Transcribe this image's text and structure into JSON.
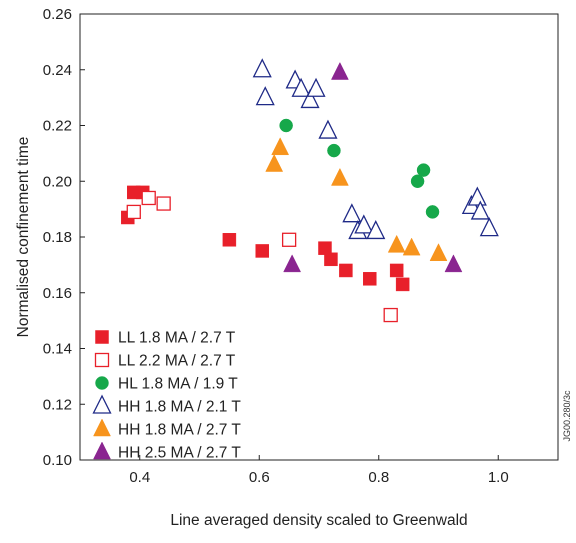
{
  "chart_data": {
    "type": "scatter",
    "title": "",
    "xlabel": "Line averaged density scaled to Greenwald",
    "ylabel": "Normalised confinement time",
    "xlim": [
      0.3,
      1.1
    ],
    "ylim": [
      0.1,
      0.26
    ],
    "xticks": [
      "0.4",
      "0.6",
      "0.8",
      "1.0"
    ],
    "yticks": [
      "0.10",
      "0.12",
      "0.14",
      "0.16",
      "0.18",
      "0.20",
      "0.22",
      "0.24",
      "0.26"
    ],
    "grid": false,
    "legend_position": "bottom-left",
    "figure_id": "JG00.280/3c",
    "series": [
      {
        "name": "LL 1.8 MA / 2.7 T",
        "marker": "square",
        "filled": true,
        "color": "#e8202a",
        "points": [
          [
            0.38,
            0.187
          ],
          [
            0.39,
            0.196
          ],
          [
            0.405,
            0.196
          ],
          [
            0.55,
            0.179
          ],
          [
            0.605,
            0.175
          ],
          [
            0.71,
            0.176
          ],
          [
            0.72,
            0.172
          ],
          [
            0.745,
            0.168
          ],
          [
            0.785,
            0.165
          ],
          [
            0.83,
            0.168
          ],
          [
            0.84,
            0.163
          ]
        ]
      },
      {
        "name": "LL 2.2 MA / 2.7 T",
        "marker": "square",
        "filled": false,
        "color": "#e8202a",
        "points": [
          [
            0.39,
            0.189
          ],
          [
            0.415,
            0.194
          ],
          [
            0.44,
            0.192
          ],
          [
            0.65,
            0.179
          ],
          [
            0.82,
            0.152
          ]
        ]
      },
      {
        "name": "HL 1.8 MA / 1.9 T",
        "marker": "circle",
        "filled": true,
        "color": "#16a84a",
        "points": [
          [
            0.645,
            0.22
          ],
          [
            0.725,
            0.211
          ],
          [
            0.865,
            0.2
          ],
          [
            0.875,
            0.204
          ],
          [
            0.89,
            0.189
          ]
        ]
      },
      {
        "name": "HH 1.8 MA / 2.1 T",
        "marker": "triangle",
        "filled": false,
        "color": "#1f2a87",
        "points": [
          [
            0.605,
            0.24
          ],
          [
            0.61,
            0.23
          ],
          [
            0.66,
            0.236
          ],
          [
            0.67,
            0.233
          ],
          [
            0.685,
            0.229
          ],
          [
            0.695,
            0.233
          ],
          [
            0.715,
            0.218
          ],
          [
            0.755,
            0.188
          ],
          [
            0.765,
            0.182
          ],
          [
            0.775,
            0.184
          ],
          [
            0.795,
            0.182
          ],
          [
            0.955,
            0.191
          ],
          [
            0.965,
            0.194
          ],
          [
            0.97,
            0.189
          ],
          [
            0.985,
            0.183
          ]
        ]
      },
      {
        "name": "HH 1.8 MA / 2.7 T",
        "marker": "triangle",
        "filled": true,
        "color": "#f7941d",
        "points": [
          [
            0.625,
            0.206
          ],
          [
            0.635,
            0.212
          ],
          [
            0.735,
            0.201
          ],
          [
            0.83,
            0.177
          ],
          [
            0.855,
            0.176
          ],
          [
            0.9,
            0.174
          ]
        ]
      },
      {
        "name": "HH 2.5 MA / 2.7 T",
        "marker": "triangle",
        "filled": true,
        "color": "#8a2590",
        "points": [
          [
            0.655,
            0.17
          ],
          [
            0.735,
            0.239
          ],
          [
            0.925,
            0.17
          ]
        ]
      }
    ]
  }
}
